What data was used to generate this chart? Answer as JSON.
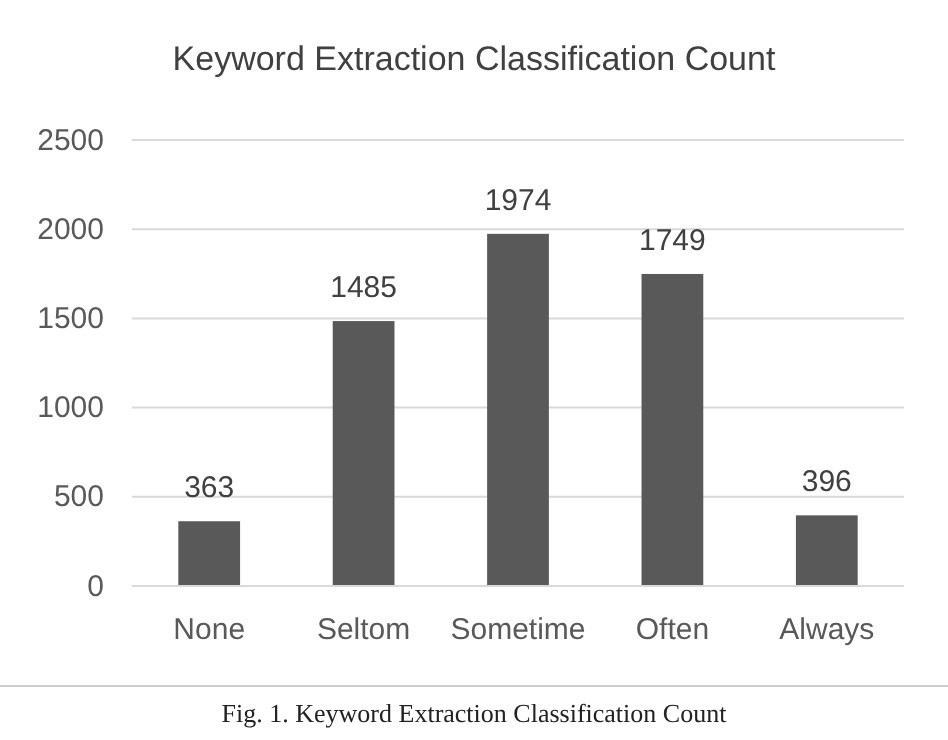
{
  "chart_data": {
    "type": "bar",
    "title": "Keyword Extraction Classification Count",
    "categories": [
      "None",
      "Seltom",
      "Sometime",
      "Often",
      "Always"
    ],
    "values": [
      363,
      1485,
      1974,
      1749,
      396
    ],
    "color": "#595959",
    "ylim": [
      0,
      2500
    ],
    "yticks": [
      0,
      500,
      1000,
      1500,
      2000,
      2500
    ],
    "grid": "y",
    "data_labels": true,
    "annotations": [
      "Fig. 1.  Keyword Extraction Classification Count"
    ]
  }
}
